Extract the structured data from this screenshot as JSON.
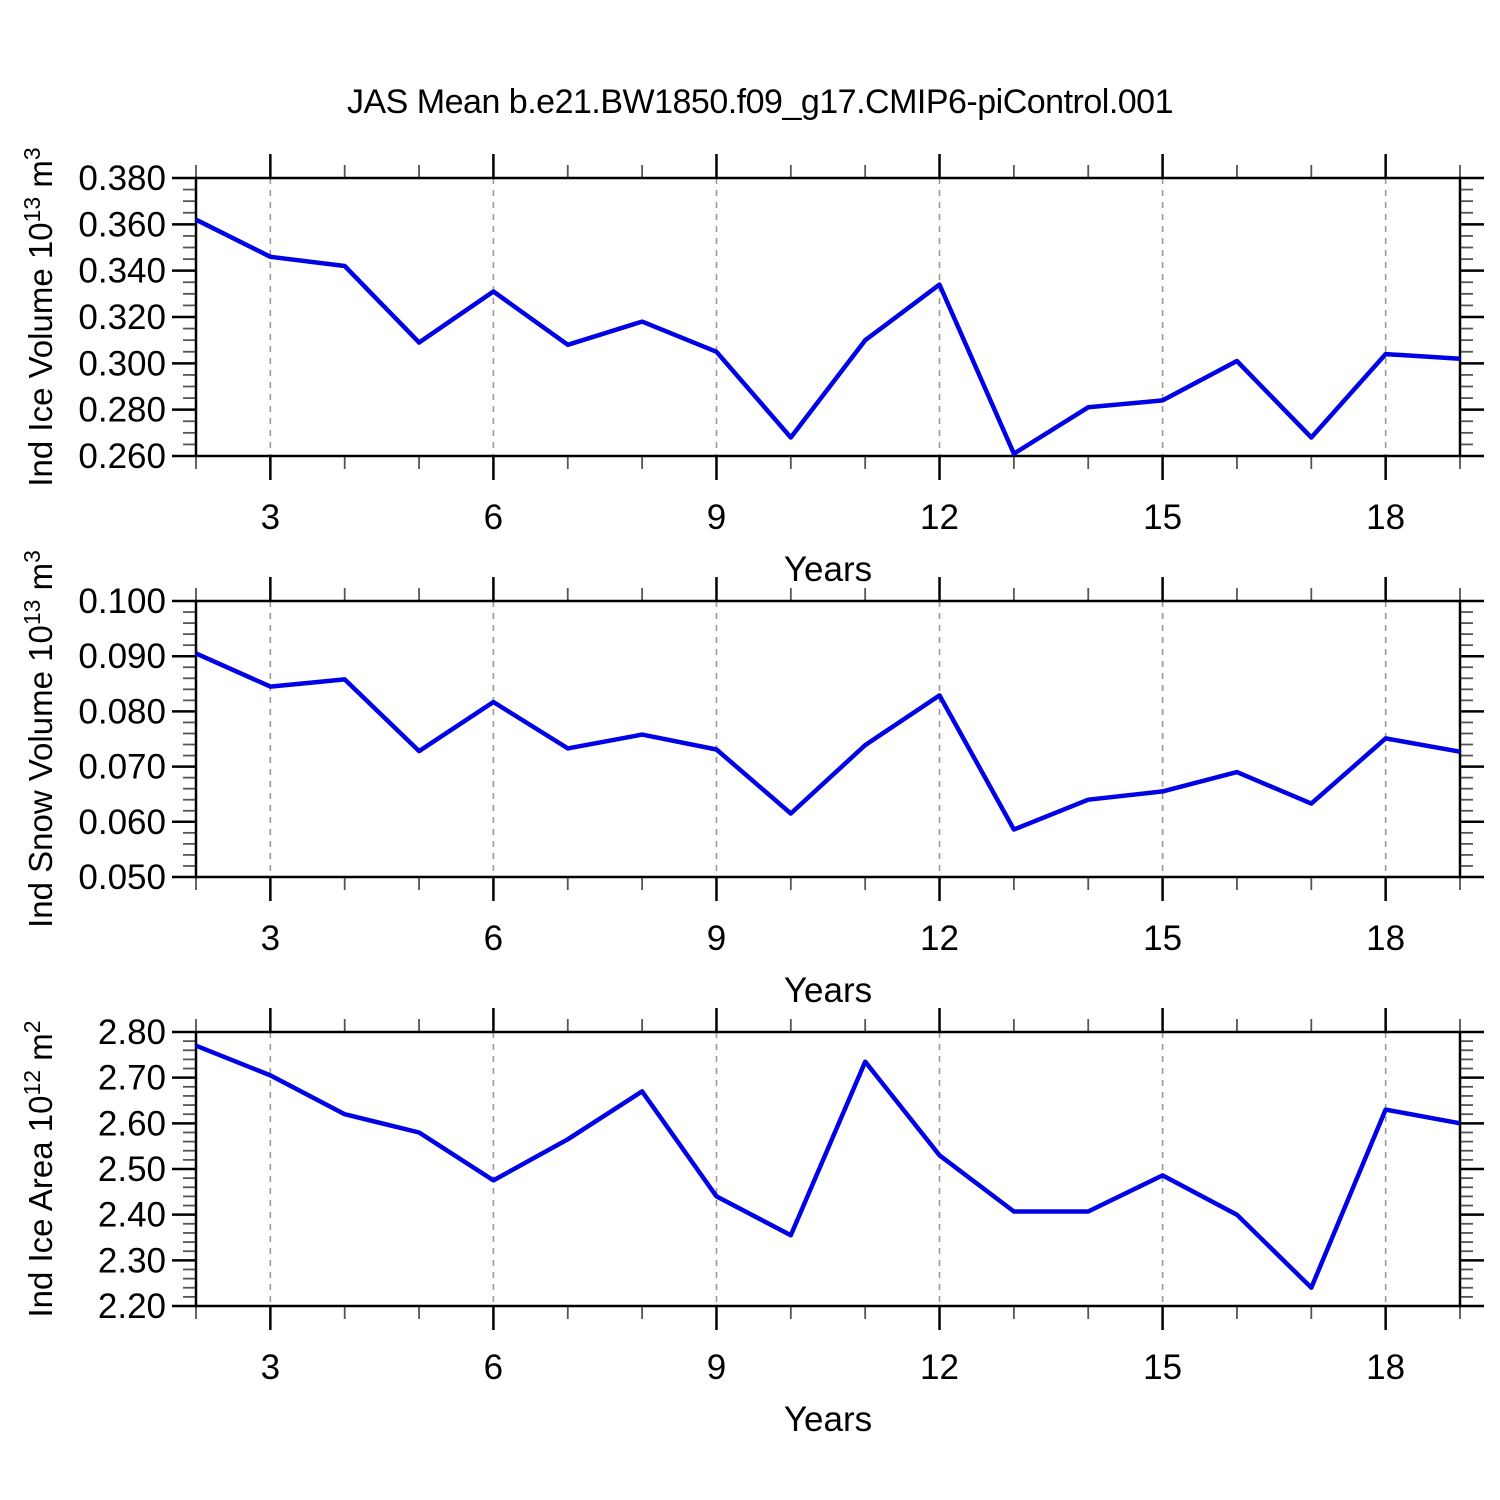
{
  "title": "JAS Mean b.e21.BW1850.f09_g17.CMIP6-piControl.001",
  "colors": {
    "series": "#0101e6",
    "grid": "#999999",
    "axis": "#000000",
    "minor_tick": "#555555"
  },
  "chart_data": [
    {
      "type": "line",
      "panel": "ice-volume",
      "ylabel_text": "Ind Ice Volume 10¹³ m³",
      "ylabel_parts": [
        "Ind Ice Volume 10",
        "13",
        " m",
        "3"
      ],
      "xlabel": "Years",
      "xlim": [
        2,
        19
      ],
      "xticks_major": [
        3,
        6,
        9,
        12,
        15,
        18
      ],
      "xtick_minor_step": 1,
      "ylim": [
        0.26,
        0.38
      ],
      "ytick_major_step": 0.02,
      "ytick_minor_step": 0.005,
      "ytick_decimals": 3,
      "x": [
        2,
        3,
        4,
        5,
        6,
        7,
        8,
        9,
        10,
        11,
        12,
        13,
        14,
        15,
        16,
        17,
        18,
        19
      ],
      "values": [
        0.362,
        0.346,
        0.342,
        0.309,
        0.331,
        0.308,
        0.318,
        0.305,
        0.268,
        0.31,
        0.334,
        0.261,
        0.281,
        0.284,
        0.301,
        0.268,
        0.304,
        0.302
      ]
    },
    {
      "type": "line",
      "panel": "snow-volume",
      "ylabel_text": "Ind Snow Volume 10¹³ m³",
      "ylabel_parts": [
        "Ind Snow Volume 10",
        "13",
        " m",
        "3"
      ],
      "xlabel": "Years",
      "xlim": [
        2,
        19
      ],
      "xticks_major": [
        3,
        6,
        9,
        12,
        15,
        18
      ],
      "xtick_minor_step": 1,
      "ylim": [
        0.05,
        0.1
      ],
      "ytick_major_step": 0.01,
      "ytick_minor_step": 0.002,
      "ytick_decimals": 3,
      "x": [
        2,
        3,
        4,
        5,
        6,
        7,
        8,
        9,
        10,
        11,
        12,
        13,
        14,
        15,
        16,
        17,
        18,
        19
      ],
      "values": [
        0.0905,
        0.0845,
        0.0858,
        0.0728,
        0.0817,
        0.0733,
        0.0758,
        0.0731,
        0.0615,
        0.0739,
        0.0829,
        0.0586,
        0.064,
        0.0655,
        0.069,
        0.0633,
        0.0751,
        0.0727
      ]
    },
    {
      "type": "line",
      "panel": "ice-area",
      "ylabel_text": "Ind Ice Area 10¹² m²",
      "ylabel_parts": [
        "Ind Ice Area 10",
        "12",
        " m",
        "2"
      ],
      "xlabel": "Years",
      "xlim": [
        2,
        19
      ],
      "xticks_major": [
        3,
        6,
        9,
        12,
        15,
        18
      ],
      "xtick_minor_step": 1,
      "ylim": [
        2.2,
        2.8
      ],
      "ytick_major_step": 0.1,
      "ytick_minor_step": 0.02,
      "ytick_decimals": 2,
      "x": [
        2,
        3,
        4,
        5,
        6,
        7,
        8,
        9,
        10,
        11,
        12,
        13,
        14,
        15,
        16,
        17,
        18,
        19
      ],
      "values": [
        2.77,
        2.705,
        2.62,
        2.58,
        2.475,
        2.565,
        2.67,
        2.44,
        2.355,
        2.735,
        2.53,
        2.407,
        2.407,
        2.486,
        2.4,
        2.24,
        2.63,
        2.6
      ]
    }
  ]
}
